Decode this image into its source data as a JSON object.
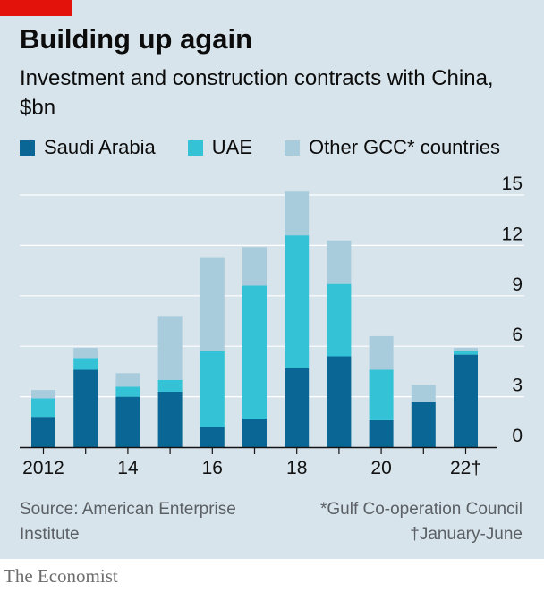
{
  "colors": {
    "saudi": "#0a6795",
    "uae": "#33c2d6",
    "other": "#a8ccdc",
    "background": "#d7e4ec",
    "accent_red": "#e3120b",
    "gridline": "#ffffff",
    "axis": "#121212"
  },
  "title": "Building up again",
  "subtitle": "Investment and construction contracts with China, $bn",
  "source": "Source: American Enterprise Institute",
  "footnote_gcc": "*Gulf Co-operation Council",
  "footnote_dagger": "†January-June",
  "brand": "The Economist",
  "chart_data": {
    "type": "bar",
    "stacked": true,
    "title": "Building up again",
    "subtitle": "Investment and construction contracts with China, $bn",
    "xlabel": "",
    "ylabel": "$bn",
    "ylim": [
      0,
      15
    ],
    "y_ticks": [
      0,
      3,
      6,
      9,
      12,
      15
    ],
    "grid": true,
    "legend_position": "top",
    "categories": [
      "2012",
      "2013",
      "2014",
      "2015",
      "2016",
      "2017",
      "2018",
      "2019",
      "2020",
      "2021",
      "2022"
    ],
    "x_tick_labels": [
      "2012",
      "",
      "14",
      "",
      "16",
      "",
      "18",
      "",
      "20",
      "",
      "22†"
    ],
    "series": [
      {
        "name": "Saudi Arabia",
        "color": "#0a6795",
        "values": [
          1.8,
          4.6,
          3.0,
          3.3,
          1.2,
          1.7,
          4.7,
          5.4,
          1.6,
          2.7,
          5.5
        ]
      },
      {
        "name": "UAE",
        "color": "#33c2d6",
        "values": [
          1.1,
          0.7,
          0.6,
          0.7,
          4.5,
          7.9,
          7.9,
          4.3,
          3.0,
          0.0,
          0.2
        ]
      },
      {
        "name": "Other GCC* countries",
        "color": "#a8ccdc",
        "values": [
          0.5,
          0.6,
          0.8,
          3.8,
          5.6,
          2.3,
          2.6,
          2.6,
          2.0,
          1.0,
          0.2
        ]
      }
    ]
  }
}
